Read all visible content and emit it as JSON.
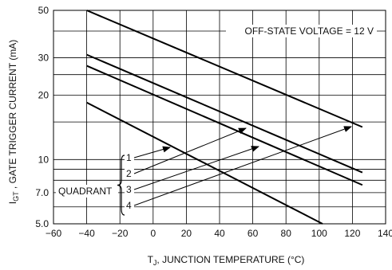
{
  "chart_data": {
    "type": "line",
    "title": "",
    "xlabel": "T_J, JUNCTION TEMPERATURE (°C)",
    "xlabel_main": "T",
    "xlabel_sub": "J",
    "xlabel_rest": ", JUNCTION TEMPERATURE (°C)",
    "ylabel": "I_GT , GATE TRIGGER CURRENT (mA)",
    "ylabel_main": "I",
    "ylabel_sub": "GT",
    "ylabel_rest": " , GATE TRIGGER CURRENT (mA)",
    "xlim": [
      -60,
      140
    ],
    "ylim": [
      5,
      50
    ],
    "yscale": "log",
    "grid": true,
    "x_ticks": [
      -60,
      -40,
      -20,
      0,
      20,
      40,
      60,
      80,
      100,
      120,
      140
    ],
    "x_tick_labels": [
      "−60",
      "−40",
      "−20",
      "0",
      "20",
      "40",
      "60",
      "80",
      "100",
      "120",
      "140"
    ],
    "y_ticks": [
      5,
      7,
      10,
      20,
      30,
      50
    ],
    "y_tick_labels": [
      "5.0",
      "7.0",
      "10",
      "20",
      "30",
      "50"
    ],
    "y_gridlines": [
      5,
      6,
      7,
      8,
      9,
      10,
      15,
      20,
      25,
      30,
      40,
      50
    ],
    "annotation": "OFF-STATE VOLTAGE = 12 V",
    "quadrant_label": "QUADRANT",
    "series": [
      {
        "label": "1",
        "x": [
          -40,
          126
        ],
        "y": [
          50,
          14.2
        ]
      },
      {
        "label": "2",
        "x": [
          -40,
          126
        ],
        "y": [
          31,
          8.7
        ]
      },
      {
        "label": "3",
        "x": [
          -40,
          126
        ],
        "y": [
          27.5,
          7.6
        ]
      },
      {
        "label": "4",
        "x": [
          -40,
          102
        ],
        "y": [
          18.5,
          5.0
        ]
      }
    ]
  }
}
